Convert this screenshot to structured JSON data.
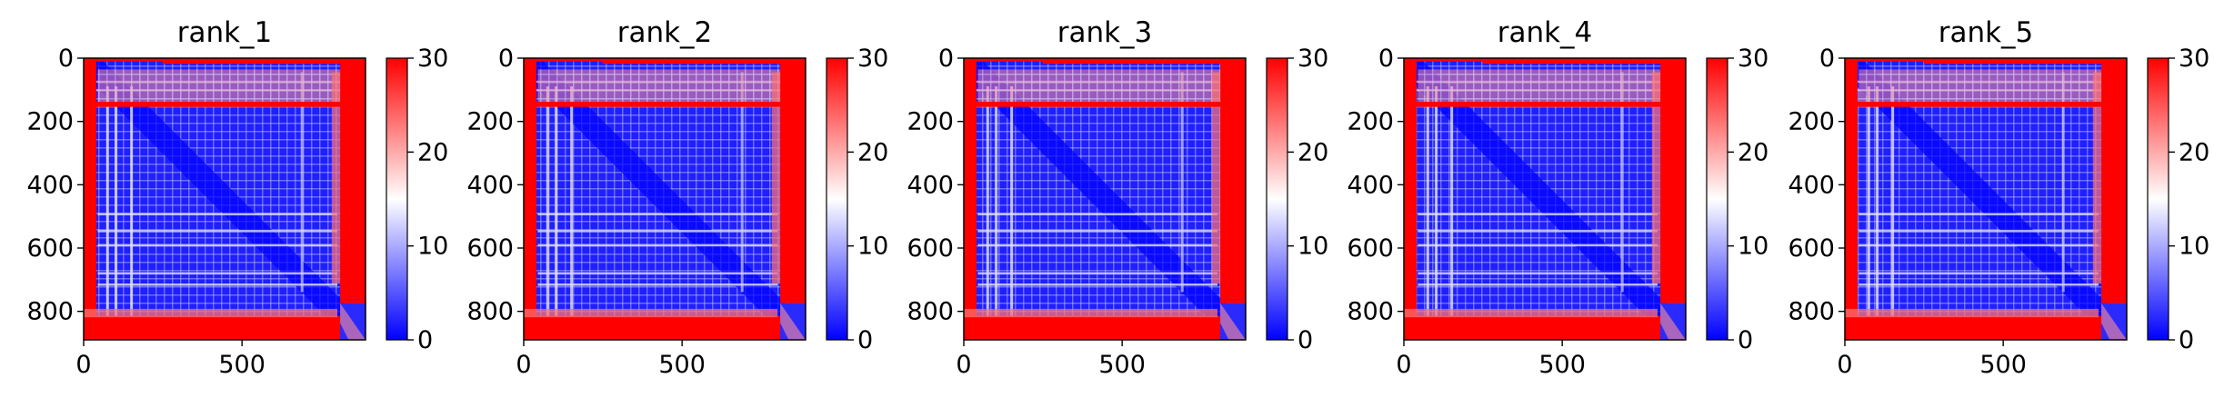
{
  "chart_data": [
    {
      "type": "heatmap",
      "title": "rank_1",
      "xticks": [
        "0",
        "500"
      ],
      "yticks": [
        "0",
        "200",
        "400",
        "600",
        "800"
      ],
      "xlim": [
        0,
        890
      ],
      "ylim": [
        890,
        0
      ],
      "colorbar": {
        "ticks": [
          "0",
          "10",
          "20",
          "30"
        ],
        "range": [
          0,
          30
        ],
        "colormap": "bwr"
      }
    },
    {
      "type": "heatmap",
      "title": "rank_2",
      "xticks": [
        "0",
        "500"
      ],
      "yticks": [
        "0",
        "200",
        "400",
        "600",
        "800"
      ],
      "xlim": [
        0,
        890
      ],
      "ylim": [
        890,
        0
      ],
      "colorbar": {
        "ticks": [
          "0",
          "10",
          "20",
          "30"
        ],
        "range": [
          0,
          30
        ],
        "colormap": "bwr"
      }
    },
    {
      "type": "heatmap",
      "title": "rank_3",
      "xticks": [
        "0",
        "500"
      ],
      "yticks": [
        "0",
        "200",
        "400",
        "600",
        "800"
      ],
      "xlim": [
        0,
        890
      ],
      "ylim": [
        890,
        0
      ],
      "colorbar": {
        "ticks": [
          "0",
          "10",
          "20",
          "30"
        ],
        "range": [
          0,
          30
        ],
        "colormap": "bwr"
      }
    },
    {
      "type": "heatmap",
      "title": "rank_4",
      "xticks": [
        "0",
        "500"
      ],
      "yticks": [
        "0",
        "200",
        "400",
        "600",
        "800"
      ],
      "xlim": [
        0,
        890
      ],
      "ylim": [
        890,
        0
      ],
      "colorbar": {
        "ticks": [
          "0",
          "10",
          "20",
          "30"
        ],
        "range": [
          0,
          30
        ],
        "colormap": "bwr"
      }
    },
    {
      "type": "heatmap",
      "title": "rank_5",
      "xticks": [
        "0",
        "500"
      ],
      "yticks": [
        "0",
        "200",
        "400",
        "600",
        "800"
      ],
      "xlim": [
        0,
        890
      ],
      "ylim": [
        890,
        0
      ],
      "colorbar": {
        "ticks": [
          "0",
          "10",
          "20",
          "30"
        ],
        "range": [
          0,
          30
        ],
        "colormap": "bwr"
      }
    }
  ],
  "colors": {
    "low": "#0000ff",
    "mid": "#ffffff",
    "high": "#ff0000"
  }
}
